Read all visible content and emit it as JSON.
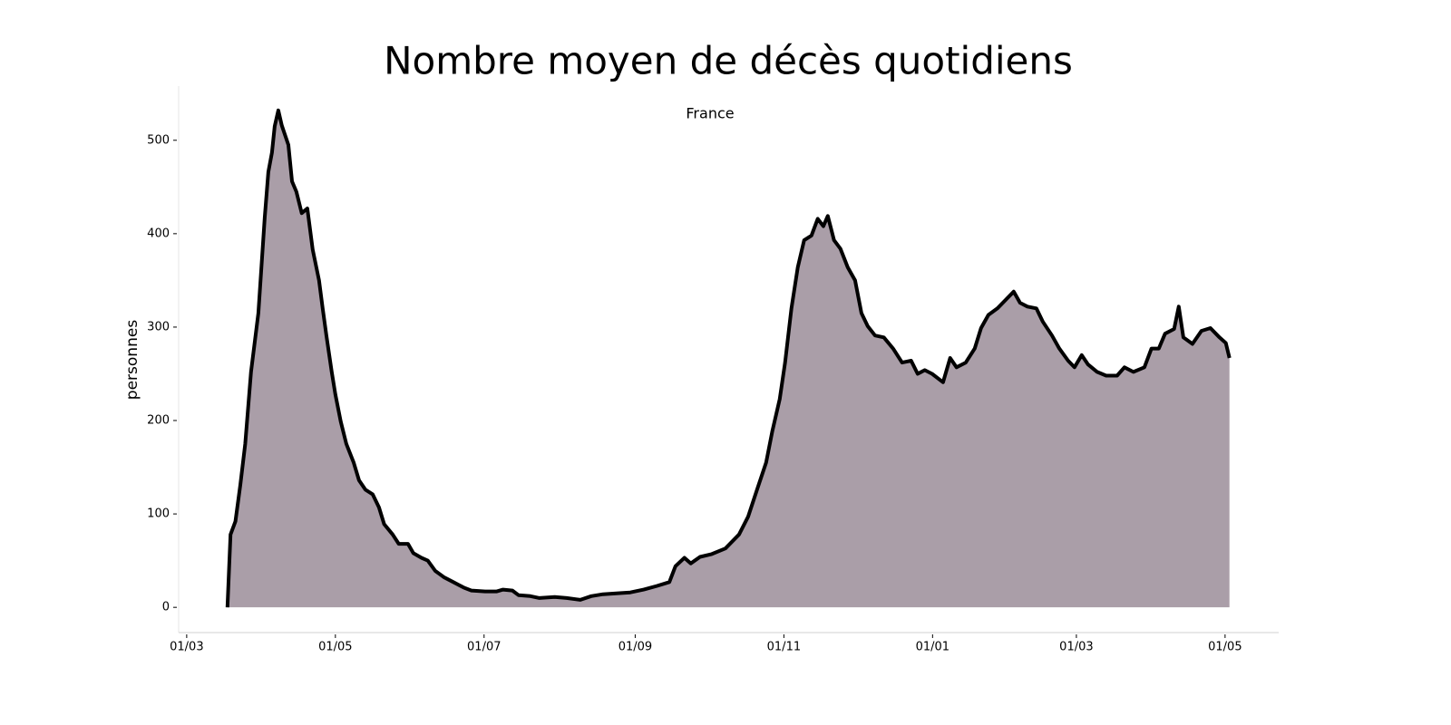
{
  "chart_data": {
    "type": "area",
    "title": "Nombre moyen de décès quotidiens",
    "subtitle": "France",
    "y_label": "personnes",
    "x": [
      16.7,
      18,
      20,
      22,
      24,
      26.4,
      29.4,
      32,
      33.5,
      35,
      36.1,
      37.6,
      39,
      41.7,
      43.2,
      45,
      47.2,
      49.5,
      51.7,
      54.3,
      55.8,
      57.3,
      59.5,
      61,
      63.2,
      65.5,
      68.5,
      70.7,
      73.3,
      76.3,
      78.9,
      81,
      84.5,
      87,
      90.8,
      93,
      96.3,
      98.9,
      102,
      105.7,
      109.4,
      113.8,
      116.8,
      122.4,
      127.2,
      129.8,
      133.6,
      136.2,
      141,
      144.7,
      151,
      155.9,
      161.5,
      166,
      170.8,
      176.3,
      182,
      187.5,
      193,
      198,
      200.5,
      204.2,
      206.8,
      210.6,
      215.4,
      221,
      226.6,
      230.3,
      234,
      237.7,
      240.3,
      243.3,
      245.5,
      248.1,
      250.7,
      253.3,
      256.3,
      258.9,
      261.2,
      263,
      265.6,
      268.2,
      271.2,
      274.2,
      276.8,
      279.4,
      282.4,
      286,
      289.8,
      293.5,
      297.2,
      299.9,
      302.8,
      305.8,
      310.3,
      313.2,
      315.8,
      319.6,
      323.3,
      325.9,
      328.9,
      332.6,
      336.3,
      339.3,
      341.9,
      344.9,
      348.6,
      351.2,
      355,
      358,
      361.6,
      364.2,
      367.2,
      369.8,
      373.5,
      377.2,
      381.7,
      384.7,
      388.4,
      392.9,
      395.8,
      398.8,
      401.4,
      405.1,
      407,
      408.9,
      412.6,
      416.3,
      420,
      423.7,
      426.3,
      427.8
    ],
    "values": [
      0,
      78,
      92,
      131,
      175,
      252,
      315,
      417,
      466,
      487,
      515,
      532,
      516,
      495,
      456,
      445,
      422,
      427,
      383,
      350,
      320,
      291,
      252,
      228,
      199,
      175,
      155,
      136,
      126,
      121,
      107,
      89,
      78,
      68,
      68,
      58,
      53,
      50,
      39,
      32,
      27,
      21,
      18,
      17,
      17,
      19,
      18,
      13,
      12,
      10,
      11,
      10,
      8,
      12,
      14,
      15,
      16,
      19,
      23,
      27,
      44,
      53,
      47,
      54,
      57,
      63,
      78,
      97,
      126,
      155,
      189,
      223,
      262,
      320,
      364,
      393,
      398,
      416,
      408,
      419,
      393,
      384,
      364,
      350,
      315,
      301,
      291,
      289,
      277,
      262,
      264,
      250,
      254,
      250,
      241,
      267,
      257,
      262,
      277,
      299,
      313,
      320,
      330,
      338,
      326,
      322,
      320,
      306,
      291,
      277,
      264,
      257,
      270,
      260,
      252,
      248,
      248,
      257,
      252,
      257,
      277,
      277,
      293,
      298,
      322,
      289,
      282,
      296,
      299,
      289,
      283,
      267
    ],
    "color": "#aa9ea8",
    "line_color": "#000000",
    "xlim": [
      -3.3,
      448
    ],
    "ylim": [
      -27,
      558
    ],
    "xticks": [
      {
        "value": 0,
        "label": "01/03"
      },
      {
        "value": 61,
        "label": "01/05"
      },
      {
        "value": 122,
        "label": "01/07"
      },
      {
        "value": 184,
        "label": "01/09"
      },
      {
        "value": 245,
        "label": "01/11"
      },
      {
        "value": 306,
        "label": "01/01"
      },
      {
        "value": 365,
        "label": "01/03"
      },
      {
        "value": 426,
        "label": "01/05"
      }
    ],
    "yticks": [
      0,
      100,
      200,
      300,
      400,
      500
    ]
  }
}
